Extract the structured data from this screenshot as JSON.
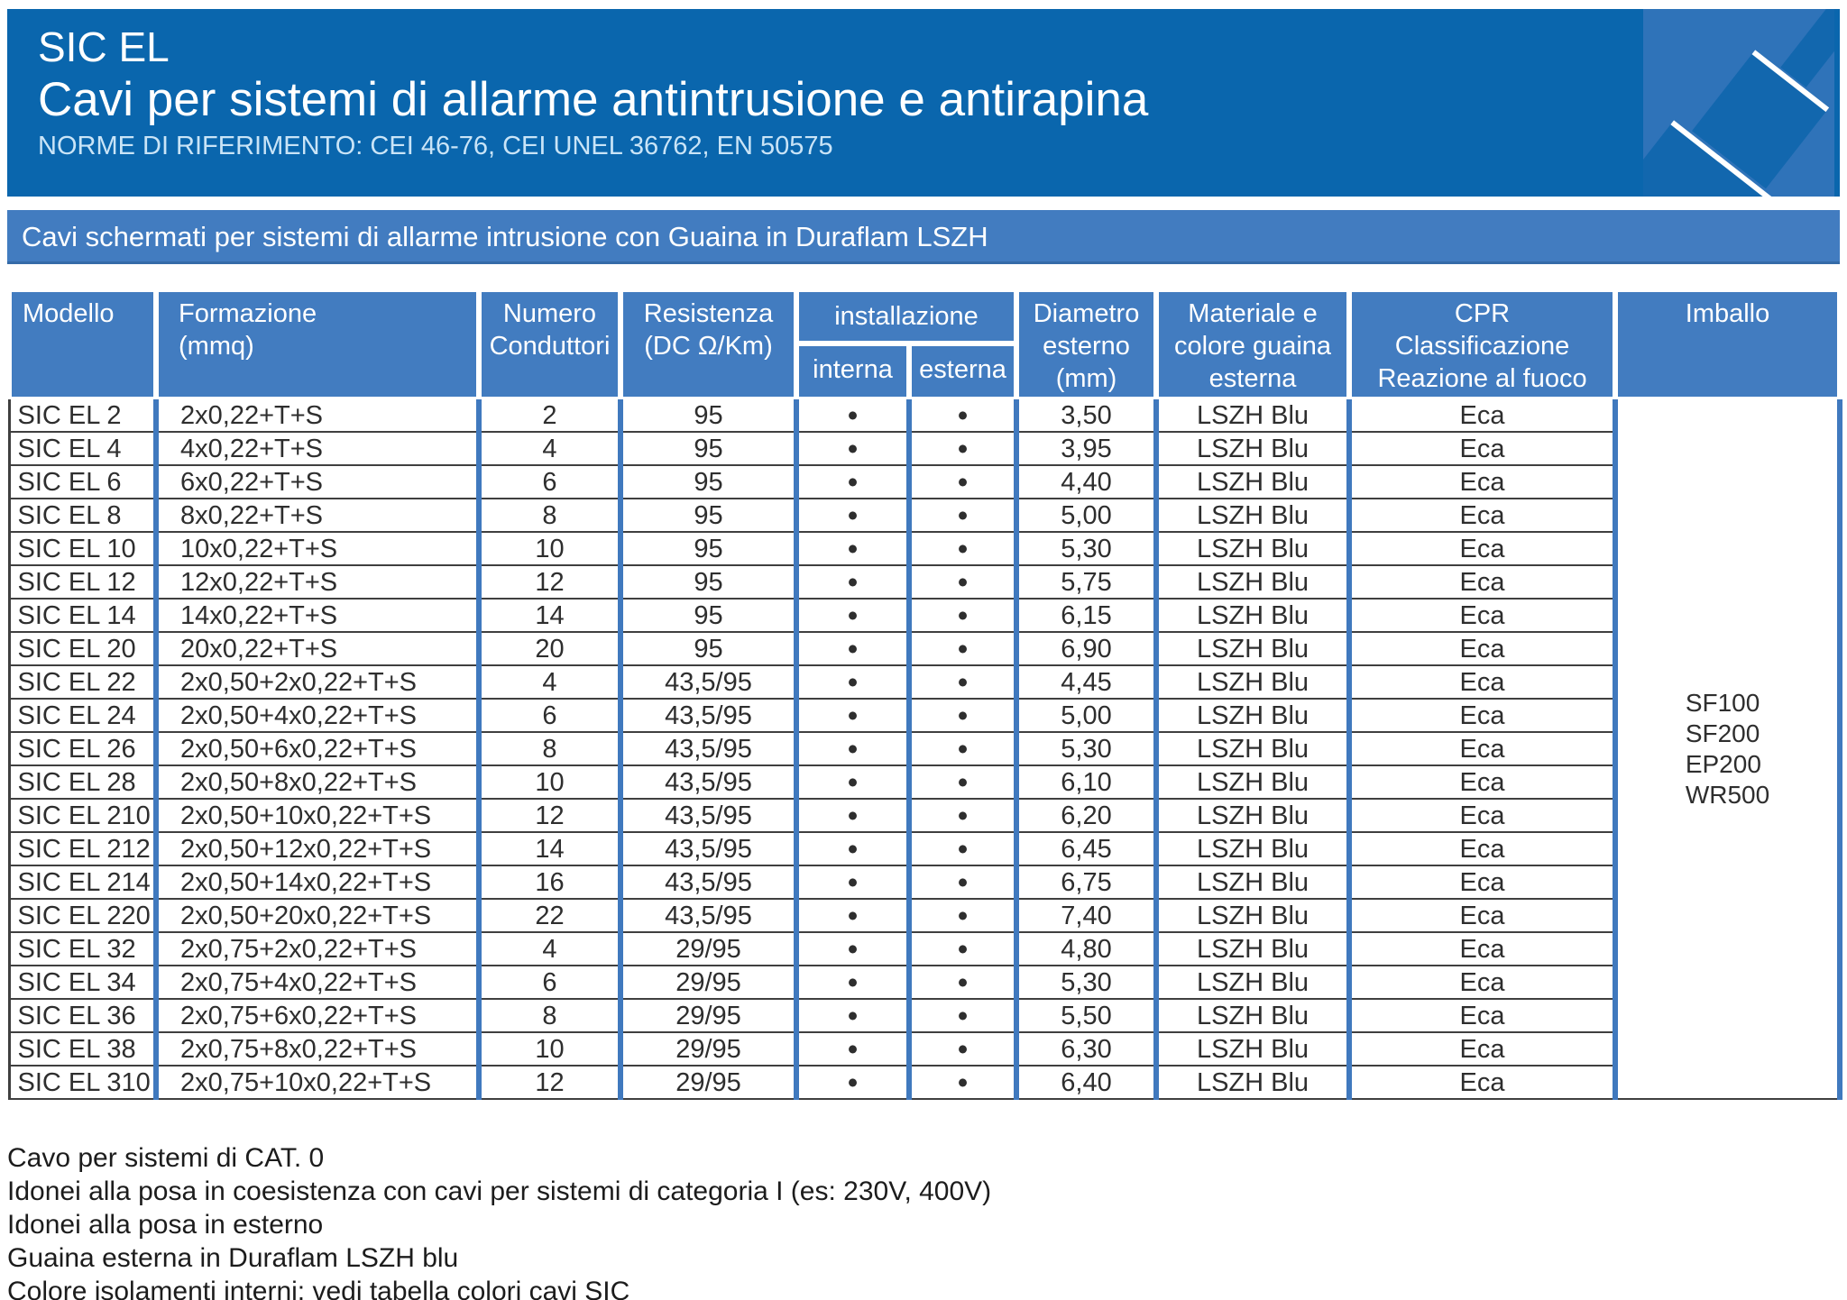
{
  "header": {
    "title": "SIC EL",
    "subtitle": "Cavi per sistemi di allarme antintrusione e antirapina",
    "norms": "NORME DI RIFERIMENTO: CEI 46-76, CEI UNEL 36762, EN 50575"
  },
  "banner": {
    "text": "Cavi schermati per sistemi di allarme intrusione con Guaina in Duraflam LSZH"
  },
  "colors": {
    "band_blue": "#0a66ad",
    "panel_blue": "#427cc0",
    "graphic_blue": "#2f73b9",
    "grid_blue": "#4079be",
    "row_line": "#3f3f3f"
  },
  "table": {
    "columns": {
      "modello": "Modello",
      "formazione": "Formazione\n(mmq)",
      "numero": "Numero\nConduttori",
      "resistenza": "Resistenza\n(DC Ω/Km)",
      "installazione": "installazione",
      "interna": "interna",
      "esterna": "esterna",
      "diametro": "Diametro\nesterno\n(mm)",
      "materiale": "Materiale e\ncolore guaina\nesterna",
      "cpr": "CPR\nClassificazione\nReazione al fuoco",
      "imballo": "Imballo"
    },
    "rows": [
      {
        "model": "SIC EL 2",
        "formation": "2x0,22+T+S",
        "conductors": "2",
        "resistance": "95",
        "internal": "•",
        "external": "•",
        "diameter": "3,50",
        "sheath": "LSZH Blu",
        "cpr": "Eca"
      },
      {
        "model": "SIC EL 4",
        "formation": "4x0,22+T+S",
        "conductors": "4",
        "resistance": "95",
        "internal": "•",
        "external": "•",
        "diameter": "3,95",
        "sheath": "LSZH Blu",
        "cpr": "Eca"
      },
      {
        "model": "SIC EL 6",
        "formation": "6x0,22+T+S",
        "conductors": "6",
        "resistance": "95",
        "internal": "•",
        "external": "•",
        "diameter": "4,40",
        "sheath": "LSZH Blu",
        "cpr": "Eca"
      },
      {
        "model": "SIC EL 8",
        "formation": "8x0,22+T+S",
        "conductors": "8",
        "resistance": "95",
        "internal": "•",
        "external": "•",
        "diameter": "5,00",
        "sheath": "LSZH Blu",
        "cpr": "Eca"
      },
      {
        "model": "SIC EL 10",
        "formation": "10x0,22+T+S",
        "conductors": "10",
        "resistance": "95",
        "internal": "•",
        "external": "•",
        "diameter": "5,30",
        "sheath": "LSZH Blu",
        "cpr": "Eca"
      },
      {
        "model": "SIC EL 12",
        "formation": "12x0,22+T+S",
        "conductors": "12",
        "resistance": "95",
        "internal": "•",
        "external": "•",
        "diameter": "5,75",
        "sheath": "LSZH Blu",
        "cpr": "Eca"
      },
      {
        "model": "SIC EL 14",
        "formation": "14x0,22+T+S",
        "conductors": "14",
        "resistance": "95",
        "internal": "•",
        "external": "•",
        "diameter": "6,15",
        "sheath": "LSZH Blu",
        "cpr": "Eca"
      },
      {
        "model": "SIC EL 20",
        "formation": "20x0,22+T+S",
        "conductors": "20",
        "resistance": "95",
        "internal": "•",
        "external": "•",
        "diameter": "6,90",
        "sheath": "LSZH Blu",
        "cpr": "Eca"
      },
      {
        "model": "SIC EL 22",
        "formation": "2x0,50+2x0,22+T+S",
        "conductors": "4",
        "resistance": "43,5/95",
        "internal": "•",
        "external": "•",
        "diameter": "4,45",
        "sheath": "LSZH Blu",
        "cpr": "Eca"
      },
      {
        "model": "SIC EL 24",
        "formation": "2x0,50+4x0,22+T+S",
        "conductors": "6",
        "resistance": "43,5/95",
        "internal": "•",
        "external": "•",
        "diameter": "5,00",
        "sheath": "LSZH Blu",
        "cpr": "Eca"
      },
      {
        "model": "SIC EL 26",
        "formation": "2x0,50+6x0,22+T+S",
        "conductors": "8",
        "resistance": "43,5/95",
        "internal": "•",
        "external": "•",
        "diameter": "5,30",
        "sheath": "LSZH Blu",
        "cpr": "Eca"
      },
      {
        "model": "SIC EL 28",
        "formation": "2x0,50+8x0,22+T+S",
        "conductors": "10",
        "resistance": "43,5/95",
        "internal": "•",
        "external": "•",
        "diameter": "6,10",
        "sheath": "LSZH Blu",
        "cpr": "Eca"
      },
      {
        "model": "SIC EL 210",
        "formation": "2x0,50+10x0,22+T+S",
        "conductors": "12",
        "resistance": "43,5/95",
        "internal": "•",
        "external": "•",
        "diameter": "6,20",
        "sheath": "LSZH Blu",
        "cpr": "Eca"
      },
      {
        "model": "SIC EL 212",
        "formation": "2x0,50+12x0,22+T+S",
        "conductors": "14",
        "resistance": "43,5/95",
        "internal": "•",
        "external": "•",
        "diameter": "6,45",
        "sheath": "LSZH Blu",
        "cpr": "Eca"
      },
      {
        "model": "SIC EL 214",
        "formation": "2x0,50+14x0,22+T+S",
        "conductors": "16",
        "resistance": "43,5/95",
        "internal": "•",
        "external": "•",
        "diameter": "6,75",
        "sheath": "LSZH Blu",
        "cpr": "Eca"
      },
      {
        "model": "SIC EL 220",
        "formation": "2x0,50+20x0,22+T+S",
        "conductors": "22",
        "resistance": "43,5/95",
        "internal": "•",
        "external": "•",
        "diameter": "7,40",
        "sheath": "LSZH Blu",
        "cpr": "Eca"
      },
      {
        "model": "SIC EL 32",
        "formation": "2x0,75+2x0,22+T+S",
        "conductors": "4",
        "resistance": "29/95",
        "internal": "•",
        "external": "•",
        "diameter": "4,80",
        "sheath": "LSZH Blu",
        "cpr": "Eca"
      },
      {
        "model": "SIC EL 34",
        "formation": "2x0,75+4x0,22+T+S",
        "conductors": "6",
        "resistance": "29/95",
        "internal": "•",
        "external": "•",
        "diameter": "5,30",
        "sheath": "LSZH Blu",
        "cpr": "Eca"
      },
      {
        "model": "SIC EL 36",
        "formation": "2x0,75+6x0,22+T+S",
        "conductors": "8",
        "resistance": "29/95",
        "internal": "•",
        "external": "•",
        "diameter": "5,50",
        "sheath": "LSZH Blu",
        "cpr": "Eca"
      },
      {
        "model": "SIC EL 38",
        "formation": "2x0,75+8x0,22+T+S",
        "conductors": "10",
        "resistance": "29/95",
        "internal": "•",
        "external": "•",
        "diameter": "6,30",
        "sheath": "LSZH Blu",
        "cpr": "Eca"
      },
      {
        "model": "SIC EL 310",
        "formation": "2x0,75+10x0,22+T+S",
        "conductors": "12",
        "resistance": "29/95",
        "internal": "•",
        "external": "•",
        "diameter": "6,40",
        "sheath": "LSZH Blu",
        "cpr": "Eca"
      }
    ],
    "imballo_lines": [
      "SF100",
      "SF200",
      "EP200",
      "WR500"
    ]
  },
  "notes": [
    "Cavo per sistemi di CAT. 0",
    "Idonei alla posa in coesistenza con cavi per sistemi di categoria I (es: 230V, 400V)",
    "Idonei alla posa in esterno",
    "Guaina esterna in Duraflam LSZH blu",
    "Colore isolamenti interni: vedi tabella colori cavi SIC"
  ]
}
